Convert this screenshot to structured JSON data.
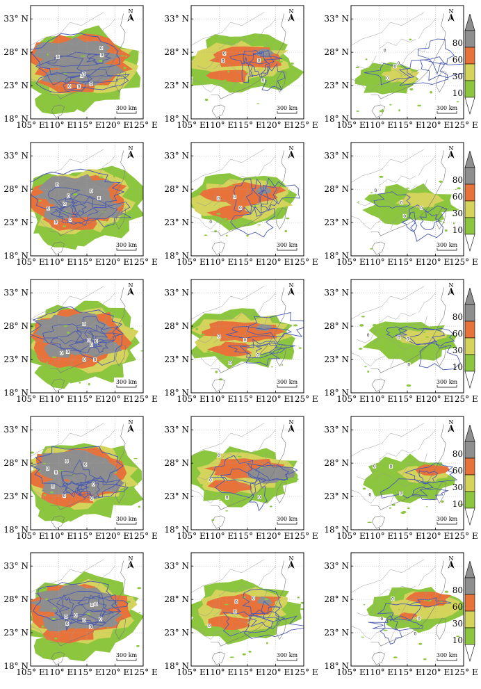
{
  "figure": {
    "rows": 5,
    "cols": 3,
    "y_tick_labels": [
      "33° N",
      "28° N",
      "23° N",
      "18° N"
    ],
    "y_tick_values": [
      33,
      28,
      23,
      18
    ],
    "x_tick_labels": [
      "105° E",
      "110° E",
      "115° E",
      "120° E",
      "125° E"
    ],
    "x_tick_values": [
      105,
      110,
      115,
      120,
      125
    ],
    "lon_range": [
      105,
      125
    ],
    "lat_range": [
      18,
      35
    ],
    "scale_bar_label": "300 km",
    "north_label": "N",
    "contour_label": "0"
  },
  "colorbar": {
    "levels": [
      "10",
      "30",
      "60",
      "80"
    ],
    "colors": {
      "green": "#8cc63f",
      "yellow": "#d4d35c",
      "orange": "#e8733a",
      "gray": "#8e8e8e"
    }
  },
  "colors": {
    "contour": "#4a5ab0",
    "border": "#999999",
    "grid": "#aaaaaa"
  },
  "panels": [
    {
      "row": 1,
      "col": 1,
      "intensity": "high"
    },
    {
      "row": 1,
      "col": 2,
      "intensity": "medium"
    },
    {
      "row": 1,
      "col": 3,
      "intensity": "low"
    },
    {
      "row": 2,
      "col": 1,
      "intensity": "high"
    },
    {
      "row": 2,
      "col": 2,
      "intensity": "medium"
    },
    {
      "row": 2,
      "col": 3,
      "intensity": "low"
    },
    {
      "row": 3,
      "col": 1,
      "intensity": "high"
    },
    {
      "row": 3,
      "col": 2,
      "intensity": "medium"
    },
    {
      "row": 3,
      "col": 3,
      "intensity": "low"
    },
    {
      "row": 4,
      "col": 1,
      "intensity": "high"
    },
    {
      "row": 4,
      "col": 2,
      "intensity": "medium"
    },
    {
      "row": 4,
      "col": 3,
      "intensity": "low"
    },
    {
      "row": 5,
      "col": 1,
      "intensity": "high"
    },
    {
      "row": 5,
      "col": 2,
      "intensity": "medium"
    },
    {
      "row": 5,
      "col": 3,
      "intensity": "lowmed"
    }
  ]
}
